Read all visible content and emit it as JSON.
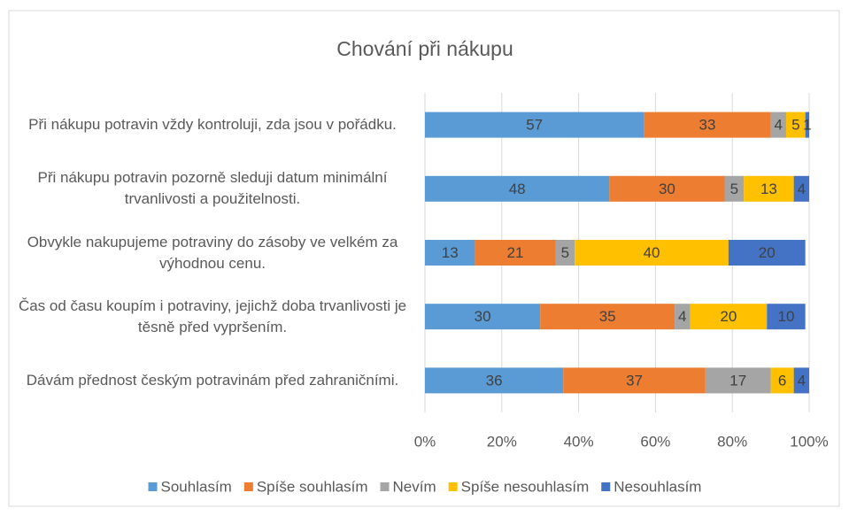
{
  "chart_data": {
    "type": "stacked_bar_horizontal",
    "title": "Chování při nákupu",
    "categories": [
      "Při nákupu potravin vždy kontroluji, zda jsou v pořádku.",
      "Při nákupu potravin pozorně sleduji datum minimální trvanlivosti a použitelnosti.",
      "Obvykle nakupujeme potraviny do zásoby ve velkém za výhodnou cenu.",
      "Čas od času koupím i potraviny, jejichž doba trvanlivosti je těsně před vypršením.",
      "Dávám přednost českým potravinám před zahraničními."
    ],
    "series": [
      {
        "name": "Souhlasím",
        "color": "#5b9bd5",
        "values": [
          57,
          48,
          13,
          30,
          36
        ]
      },
      {
        "name": "Spíše souhlasím",
        "color": "#ed7d31",
        "values": [
          33,
          30,
          21,
          35,
          37
        ]
      },
      {
        "name": "Nevím",
        "color": "#a5a5a5",
        "values": [
          4,
          5,
          5,
          4,
          17
        ]
      },
      {
        "name": "Spíše nesouhlasím",
        "color": "#ffc000",
        "values": [
          5,
          13,
          40,
          20,
          6
        ]
      },
      {
        "name": "Nesouhlasím",
        "color": "#4472c4",
        "values": [
          1,
          4,
          20,
          10,
          4
        ]
      }
    ],
    "xlim": [
      0,
      100
    ],
    "xticks": [
      {
        "value": 0,
        "label": "0%"
      },
      {
        "value": 20,
        "label": "20%"
      },
      {
        "value": 40,
        "label": "40%"
      },
      {
        "value": 60,
        "label": "60%"
      },
      {
        "value": 80,
        "label": "80%"
      },
      {
        "value": 100,
        "label": "100%"
      }
    ],
    "grid": true,
    "legend": "bottom"
  }
}
